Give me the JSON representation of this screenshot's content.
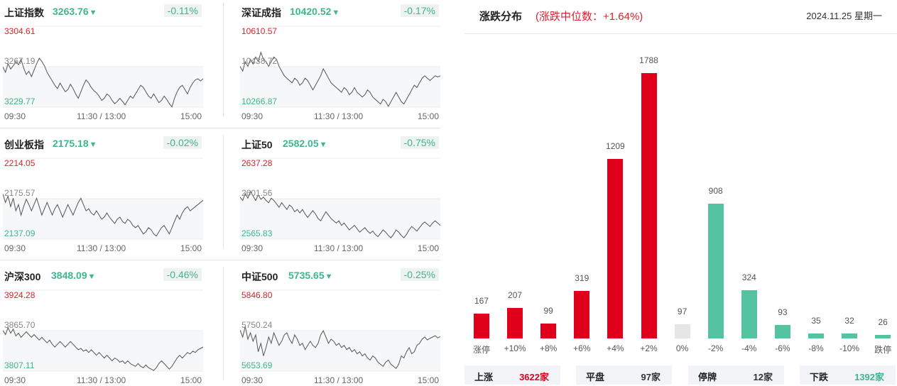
{
  "indices": [
    {
      "name": "上证指数",
      "value": "3263.76",
      "change": "-0.11%",
      "high": "3304.61",
      "mid": "3267.19",
      "low": "3229.77",
      "series": [
        3267,
        3262,
        3270,
        3265,
        3268,
        3272,
        3269,
        3274,
        3266,
        3260,
        3263,
        3258,
        3264,
        3270,
        3275,
        3272,
        3268,
        3262,
        3258,
        3254,
        3250,
        3247,
        3252,
        3248,
        3244,
        3246,
        3251,
        3247,
        3242,
        3238,
        3244,
        3250,
        3255,
        3252,
        3248,
        3245,
        3243,
        3240,
        3236,
        3238,
        3242,
        3240,
        3236,
        3233,
        3235,
        3238,
        3235,
        3232,
        3236,
        3240,
        3238,
        3242,
        3246,
        3250,
        3248,
        3244,
        3240,
        3238,
        3242,
        3238,
        3234,
        3236,
        3240,
        3237,
        3233,
        3230,
        3238,
        3244,
        3248,
        3250,
        3246,
        3242,
        3248,
        3252,
        3255,
        3256,
        3254,
        3256
      ]
    },
    {
      "name": "深证成指",
      "value": "10420.52",
      "change": "-0.17%",
      "high": "10610.57",
      "mid": "10438.72",
      "low": "10266.87",
      "series": [
        10440,
        10420,
        10460,
        10440,
        10470,
        10450,
        10480,
        10460,
        10500,
        10470,
        10460,
        10440,
        10460,
        10480,
        10470,
        10440,
        10420,
        10400,
        10390,
        10380,
        10370,
        10390,
        10380,
        10360,
        10370,
        10390,
        10380,
        10360,
        10340,
        10360,
        10380,
        10400,
        10430,
        10410,
        10390,
        10370,
        10360,
        10350,
        10340,
        10330,
        10350,
        10340,
        10320,
        10330,
        10350,
        10330,
        10320,
        10310,
        10320,
        10340,
        10330,
        10310,
        10300,
        10290,
        10280,
        10300,
        10290,
        10270,
        10290,
        10310,
        10330,
        10310,
        10290,
        10280,
        10300,
        10320,
        10340,
        10360,
        10350,
        10370,
        10390,
        10400,
        10390,
        10380,
        10390,
        10400,
        10395,
        10400
      ]
    },
    {
      "name": "创业板指",
      "value": "2175.18",
      "change": "-0.02%",
      "high": "2214.05",
      "mid": "2175.57",
      "low": "2137.09",
      "series": [
        2180,
        2172,
        2178,
        2168,
        2176,
        2164,
        2170,
        2160,
        2168,
        2175,
        2170,
        2164,
        2170,
        2176,
        2168,
        2160,
        2166,
        2172,
        2166,
        2160,
        2166,
        2170,
        2164,
        2158,
        2164,
        2170,
        2165,
        2160,
        2166,
        2172,
        2176,
        2170,
        2164,
        2166,
        2162,
        2160,
        2164,
        2160,
        2156,
        2158,
        2162,
        2158,
        2155,
        2152,
        2156,
        2158,
        2154,
        2152,
        2156,
        2154,
        2150,
        2148,
        2150,
        2146,
        2142,
        2144,
        2148,
        2146,
        2142,
        2140,
        2144,
        2148,
        2150,
        2146,
        2142,
        2148,
        2154,
        2160,
        2156,
        2162,
        2166,
        2168,
        2164,
        2166,
        2168,
        2170,
        2172,
        2174
      ]
    },
    {
      "name": "上证50",
      "value": "2582.05",
      "change": "-0.75%",
      "high": "2637.28",
      "mid": "2601.56",
      "low": "2565.83",
      "series": [
        2603,
        2600,
        2606,
        2602,
        2608,
        2604,
        2600,
        2605,
        2601,
        2603,
        2600,
        2598,
        2602,
        2600,
        2597,
        2594,
        2598,
        2595,
        2592,
        2596,
        2594,
        2590,
        2592,
        2589,
        2592,
        2588,
        2585,
        2588,
        2591,
        2588,
        2584,
        2582,
        2586,
        2590,
        2587,
        2584,
        2582,
        2580,
        2582,
        2578,
        2580,
        2577,
        2574,
        2576,
        2578,
        2575,
        2572,
        2574,
        2576,
        2573,
        2571,
        2573,
        2570,
        2568,
        2571,
        2574,
        2572,
        2569,
        2567,
        2570,
        2574,
        2572,
        2569,
        2567,
        2570,
        2574,
        2577,
        2575,
        2573,
        2576,
        2579,
        2581,
        2579,
        2577,
        2580,
        2582,
        2580,
        2578
      ]
    },
    {
      "name": "沪深300",
      "value": "3848.09",
      "change": "-0.46%",
      "high": "3924.28",
      "mid": "3865.70",
      "low": "3807.11",
      "series": [
        3866,
        3860,
        3870,
        3862,
        3868,
        3858,
        3862,
        3856,
        3860,
        3864,
        3860,
        3856,
        3860,
        3856,
        3852,
        3856,
        3852,
        3848,
        3852,
        3846,
        3842,
        3846,
        3850,
        3846,
        3842,
        3846,
        3850,
        3846,
        3842,
        3838,
        3840,
        3836,
        3838,
        3834,
        3838,
        3834,
        3830,
        3834,
        3830,
        3826,
        3830,
        3826,
        3822,
        3826,
        3824,
        3820,
        3822,
        3818,
        3822,
        3818,
        3816,
        3814,
        3818,
        3814,
        3812,
        3816,
        3812,
        3810,
        3808,
        3812,
        3818,
        3822,
        3818,
        3814,
        3810,
        3814,
        3820,
        3826,
        3830,
        3826,
        3830,
        3834,
        3832,
        3836,
        3834,
        3838,
        3840,
        3842
      ]
    },
    {
      "name": "中证500",
      "value": "5735.65",
      "change": "-0.25%",
      "high": "5846.80",
      "mid": "5750.24",
      "low": "5653.69",
      "series": [
        5752,
        5735,
        5760,
        5730,
        5745,
        5725,
        5740,
        5700,
        5720,
        5690,
        5710,
        5735,
        5720,
        5745,
        5730,
        5715,
        5725,
        5740,
        5745,
        5730,
        5720,
        5740,
        5730,
        5715,
        5720,
        5705,
        5715,
        5725,
        5715,
        5710,
        5720,
        5740,
        5750,
        5735,
        5720,
        5730,
        5725,
        5715,
        5720,
        5710,
        5715,
        5705,
        5710,
        5700,
        5705,
        5695,
        5700,
        5690,
        5695,
        5685,
        5680,
        5690,
        5685,
        5675,
        5670,
        5665,
        5675,
        5680,
        5670,
        5665,
        5660,
        5670,
        5690,
        5685,
        5700,
        5710,
        5695,
        5700,
        5715,
        5720,
        5730,
        5735,
        5728,
        5732,
        5735,
        5738,
        5733,
        5736
      ]
    }
  ],
  "time_labels": {
    "open": "09:30",
    "midday": "11:30 / 13:00",
    "close": "15:00"
  },
  "distribution": {
    "title": "涨跌分布",
    "median": "(涨跌中位数：+1.64%)",
    "date": "2024.11.25 星期一",
    "colors": {
      "up": "#e0001b",
      "flat": "#e6e6e6",
      "down": "#56c3a0"
    },
    "chart_data": {
      "type": "bar",
      "categories": [
        "涨停",
        "+10%",
        "+8%",
        "+6%",
        "+4%",
        "+2%",
        "0%",
        "-2%",
        "-4%",
        "-6%",
        "-8%",
        "-10%",
        "跌停"
      ],
      "values": [
        167,
        207,
        99,
        319,
        1209,
        1788,
        97,
        908,
        324,
        93,
        35,
        32,
        26
      ],
      "kinds": [
        "up",
        "up",
        "up",
        "up",
        "up",
        "up",
        "flat",
        "down",
        "down",
        "down",
        "down",
        "down",
        "down"
      ]
    },
    "summary": [
      {
        "label": "上涨",
        "value": "3622家",
        "color": "#e0001b"
      },
      {
        "label": "平盘",
        "value": "97家",
        "color": "#333333"
      },
      {
        "label": "停牌",
        "value": "12家",
        "color": "#333333"
      },
      {
        "label": "下跌",
        "value": "1392家",
        "color": "#3fb68b"
      }
    ]
  }
}
